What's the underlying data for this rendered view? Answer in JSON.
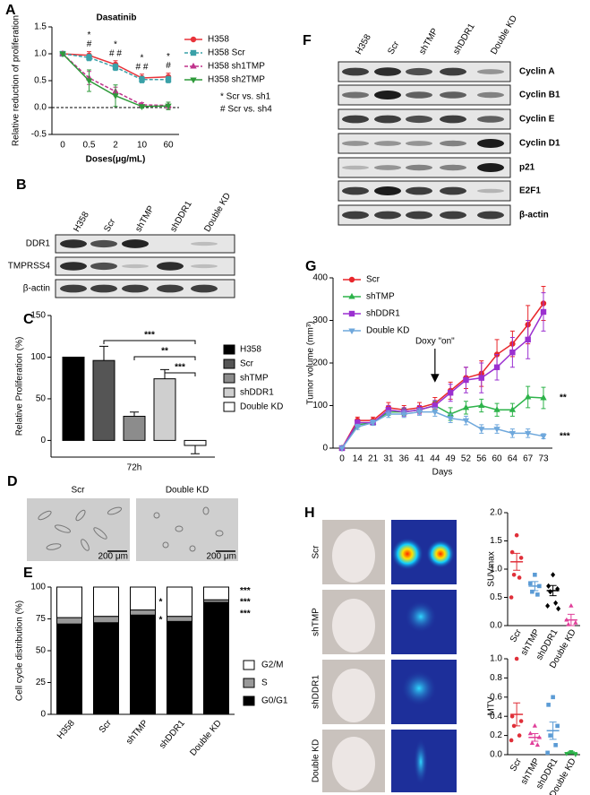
{
  "chart_data": [
    {
      "panel": "A",
      "type": "line",
      "title": "Dasatinib",
      "x_label": "Doses(μg/mL)",
      "y_label": "Relative reduction of proliferation",
      "categories": [
        "0",
        "0.5",
        "2",
        "10",
        "60"
      ],
      "series": [
        {
          "name": "H358",
          "color": "#e8333a",
          "marker": "circle",
          "line_style": "solid",
          "values": [
            1,
            0.97,
            0.8,
            0.55,
            0.57
          ],
          "errors": [
            0,
            0.07,
            0.07,
            0.07,
            0.07
          ]
        },
        {
          "name": "H358 Scr",
          "color": "#3aa1a8",
          "marker": "square",
          "line_style": "dashed",
          "values": [
            1,
            0.93,
            0.75,
            0.52,
            0.52
          ],
          "errors": [
            0,
            0.06,
            0.06,
            0.06,
            0.06
          ]
        },
        {
          "name": "H358 sh1TMP",
          "color": "#c0338c",
          "marker": "triangle",
          "line_style": "dashed",
          "values": [
            1,
            0.55,
            0.3,
            0.05,
            0.04
          ],
          "errors": [
            0,
            0.12,
            0.08,
            0.04,
            0.06
          ]
        },
        {
          "name": "H358 sh2TMP",
          "color": "#2e9a3a",
          "marker": "triangle-down",
          "line_style": "solid",
          "values": [
            1,
            0.5,
            0.22,
            0.02,
            0.03
          ],
          "errors": [
            0,
            0.2,
            0.2,
            0.03,
            0.07
          ]
        }
      ],
      "ylim": [
        -0.5,
        1.5
      ],
      "yticks": [
        -0.5,
        {
          "value": 0,
          "label": "0.0"
        },
        0.5,
        {
          "value": 1,
          "label": "1.0"
        },
        1.5
      ],
      "reference_line": 0,
      "sig_star": [
        null,
        "*",
        "*",
        "*",
        "*"
      ],
      "sig_hash": [
        null,
        "#",
        "# #",
        "# #",
        "#"
      ],
      "notes": [
        "* Scr vs. sh1",
        "# Scr vs. sh4"
      ]
    },
    {
      "panel": "C",
      "type": "bar",
      "y_label": "Relative Proliferation (%)",
      "categories": [
        "72h"
      ],
      "series": [
        {
          "name": "H358",
          "color": "#000000",
          "values": [
            100
          ]
        },
        {
          "name": "Scr",
          "color": "#555555",
          "values": [
            96
          ],
          "errors": [
            17
          ]
        },
        {
          "name": "shTMP",
          "color": "#8c8c8c",
          "values": [
            29
          ],
          "errors": [
            5
          ]
        },
        {
          "name": "shDDR1",
          "color": "#cfcfcf",
          "values": [
            74
          ],
          "errors": [
            11
          ]
        },
        {
          "name": "Double KD",
          "color": "#ffffff",
          "values": [
            -6
          ],
          "errors": [
            10
          ]
        }
      ],
      "ylim": [
        -20,
        150
      ],
      "yticks": [
        0,
        50,
        100,
        150
      ],
      "brackets": [
        "***",
        "**",
        "***"
      ]
    },
    {
      "panel": "E",
      "type": "stacked-bar",
      "y_label": "Cell cycle distribution (%)",
      "categories": [
        "H358",
        "Scr",
        "shTMP",
        "shDDR1",
        "Double KD"
      ],
      "series": [
        {
          "name": "G0/G1",
          "color": "#000000",
          "values": [
            71,
            72,
            78,
            73,
            88
          ]
        },
        {
          "name": "S",
          "color": "#999999",
          "values": [
            5,
            5,
            4,
            4,
            2
          ]
        },
        {
          "name": "G2/M",
          "color": "#ffffff",
          "values": [
            24,
            23,
            18,
            23,
            10
          ]
        }
      ],
      "ylim": [
        0,
        100
      ],
      "yticks": [
        0,
        25,
        50,
        75,
        100
      ],
      "annotations": [
        "*",
        "*",
        "***",
        "***",
        "***"
      ]
    },
    {
      "panel": "G",
      "type": "line",
      "x_label": "Days",
      "y_label": "Tumor volume (mm³)",
      "categories": [
        "0",
        "14",
        "21",
        "31",
        "36",
        "41",
        "44",
        "49",
        "52",
        "56",
        "60",
        "64",
        "67",
        "73"
      ],
      "series": [
        {
          "name": "Scr",
          "color": "#e8262b",
          "marker": "circle",
          "line_style": "solid",
          "values": [
            0,
            65,
            65,
            95,
            90,
            95,
            105,
            135,
            165,
            175,
            220,
            245,
            290,
            340
          ],
          "errors": [
            0,
            8,
            8,
            12,
            10,
            12,
            14,
            20,
            25,
            30,
            35,
            30,
            45,
            40
          ]
        },
        {
          "name": "shTMP",
          "color": "#2db34a",
          "marker": "triangle",
          "line_style": "solid",
          "values": [
            0,
            55,
            60,
            85,
            85,
            90,
            100,
            80,
            95,
            100,
            90,
            90,
            120,
            118
          ],
          "errors": [
            0,
            6,
            6,
            8,
            8,
            10,
            10,
            15,
            15,
            15,
            15,
            15,
            25,
            25
          ]
        },
        {
          "name": "shDDR1",
          "color": "#9b30d0",
          "marker": "square",
          "line_style": "solid",
          "values": [
            0,
            60,
            60,
            90,
            85,
            90,
            100,
            130,
            160,
            165,
            190,
            225,
            255,
            320
          ],
          "errors": [
            0,
            6,
            6,
            10,
            10,
            10,
            12,
            20,
            30,
            35,
            30,
            35,
            45,
            45
          ]
        },
        {
          "name": "Double KD",
          "color": "#6fa8dc",
          "marker": "triangle-down",
          "line_style": "solid",
          "values": [
            0,
            50,
            60,
            80,
            80,
            85,
            85,
            70,
            65,
            45,
            45,
            35,
            35,
            28
          ],
          "errors": [
            0,
            6,
            6,
            8,
            8,
            8,
            10,
            10,
            10,
            10,
            10,
            10,
            10,
            6
          ]
        }
      ],
      "ylim": [
        0,
        400
      ],
      "yticks": [
        0,
        100,
        200,
        300,
        400
      ],
      "arrow_label": "Doxy \"on\"",
      "end_labels": [
        "**",
        "***"
      ]
    },
    {
      "type": "dot",
      "y_label": "SUVmax",
      "categories": [
        "Scr",
        "shTMP",
        "shDDR1",
        "Double KD"
      ],
      "colors": [
        "#e0303a",
        "#5b9bd5",
        "#000000",
        "#e0409a"
      ],
      "markers": [
        "circle",
        "square",
        "diamond",
        "triangle"
      ],
      "points": [
        [
          1.6,
          1.3,
          1.2,
          0.9,
          0.85,
          0.5
        ],
        [
          0.9,
          0.75,
          0.7,
          0.6,
          0.55
        ],
        [
          0.9,
          0.7,
          0.65,
          0.6,
          0.4,
          0.35,
          0.3
        ],
        [
          0.35,
          0.1,
          0.05,
          0.02
        ]
      ],
      "means": [
        1.13,
        0.7,
        0.62,
        0.1
      ],
      "errors": [
        0.15,
        0.08,
        0.09,
        0.1
      ],
      "ylim": [
        0,
        2
      ],
      "yticks": [
        {
          "value": 0,
          "label": "0.0"
        },
        0.5,
        {
          "value": 1,
          "label": "1.0"
        },
        1.5,
        {
          "value": 2,
          "label": "2.0"
        }
      ]
    },
    {
      "type": "dot",
      "y_label": "MTV",
      "categories": [
        "Scr",
        "shTMP",
        "shDDR1",
        "Double KD"
      ],
      "colors": [
        "#e0303a",
        "#e0409a",
        "#5b9bd5",
        "#2db34a"
      ],
      "markers": [
        "circle",
        "triangle",
        "square",
        "triangle-down"
      ],
      "points": [
        [
          1.0,
          0.4,
          0.35,
          0.3,
          0.2,
          0.15
        ],
        [
          0.3,
          0.22,
          0.18,
          0.12,
          0.1
        ],
        [
          0.6,
          0.52,
          0.3,
          0.2,
          0.1,
          0.02
        ],
        [
          0.03,
          0.01,
          0
        ]
      ],
      "means": [
        0.42,
        0.18,
        0.25,
        0.02
      ],
      "errors": [
        0.12,
        0.04,
        0.09,
        0.01
      ],
      "ylim": [
        0,
        1
      ],
      "yticks": [
        {
          "value": 0,
          "label": "0.0"
        },
        0.2,
        0.4,
        0.6,
        0.8,
        {
          "value": 1,
          "label": "1.0"
        }
      ]
    }
  ],
  "blots": [
    {
      "panel": "B",
      "lanes": [
        "H358",
        "Scr",
        "shTMP",
        "shDDR1",
        "Double KD"
      ],
      "rows": [
        "DDR1",
        "TMPRSS4",
        "β-actin"
      ]
    },
    {
      "panel": "F",
      "lanes": [
        "H358",
        "Scr",
        "shTMP",
        "shDDR1",
        "Double KD"
      ],
      "rows": [
        "Cyclin A",
        "Cyclin B1",
        "Cyclin E",
        "Cyclin D1",
        "p21",
        "E2F1",
        "β-actin"
      ]
    }
  ],
  "micrographs": {
    "panel": "D",
    "labels": [
      "Scr",
      "Double KD"
    ],
    "scale_bar": "200 μm"
  },
  "imaging": {
    "panel": "H",
    "labels": [
      "Scr",
      "shTMP",
      "shDDR1",
      "Double KD"
    ]
  }
}
